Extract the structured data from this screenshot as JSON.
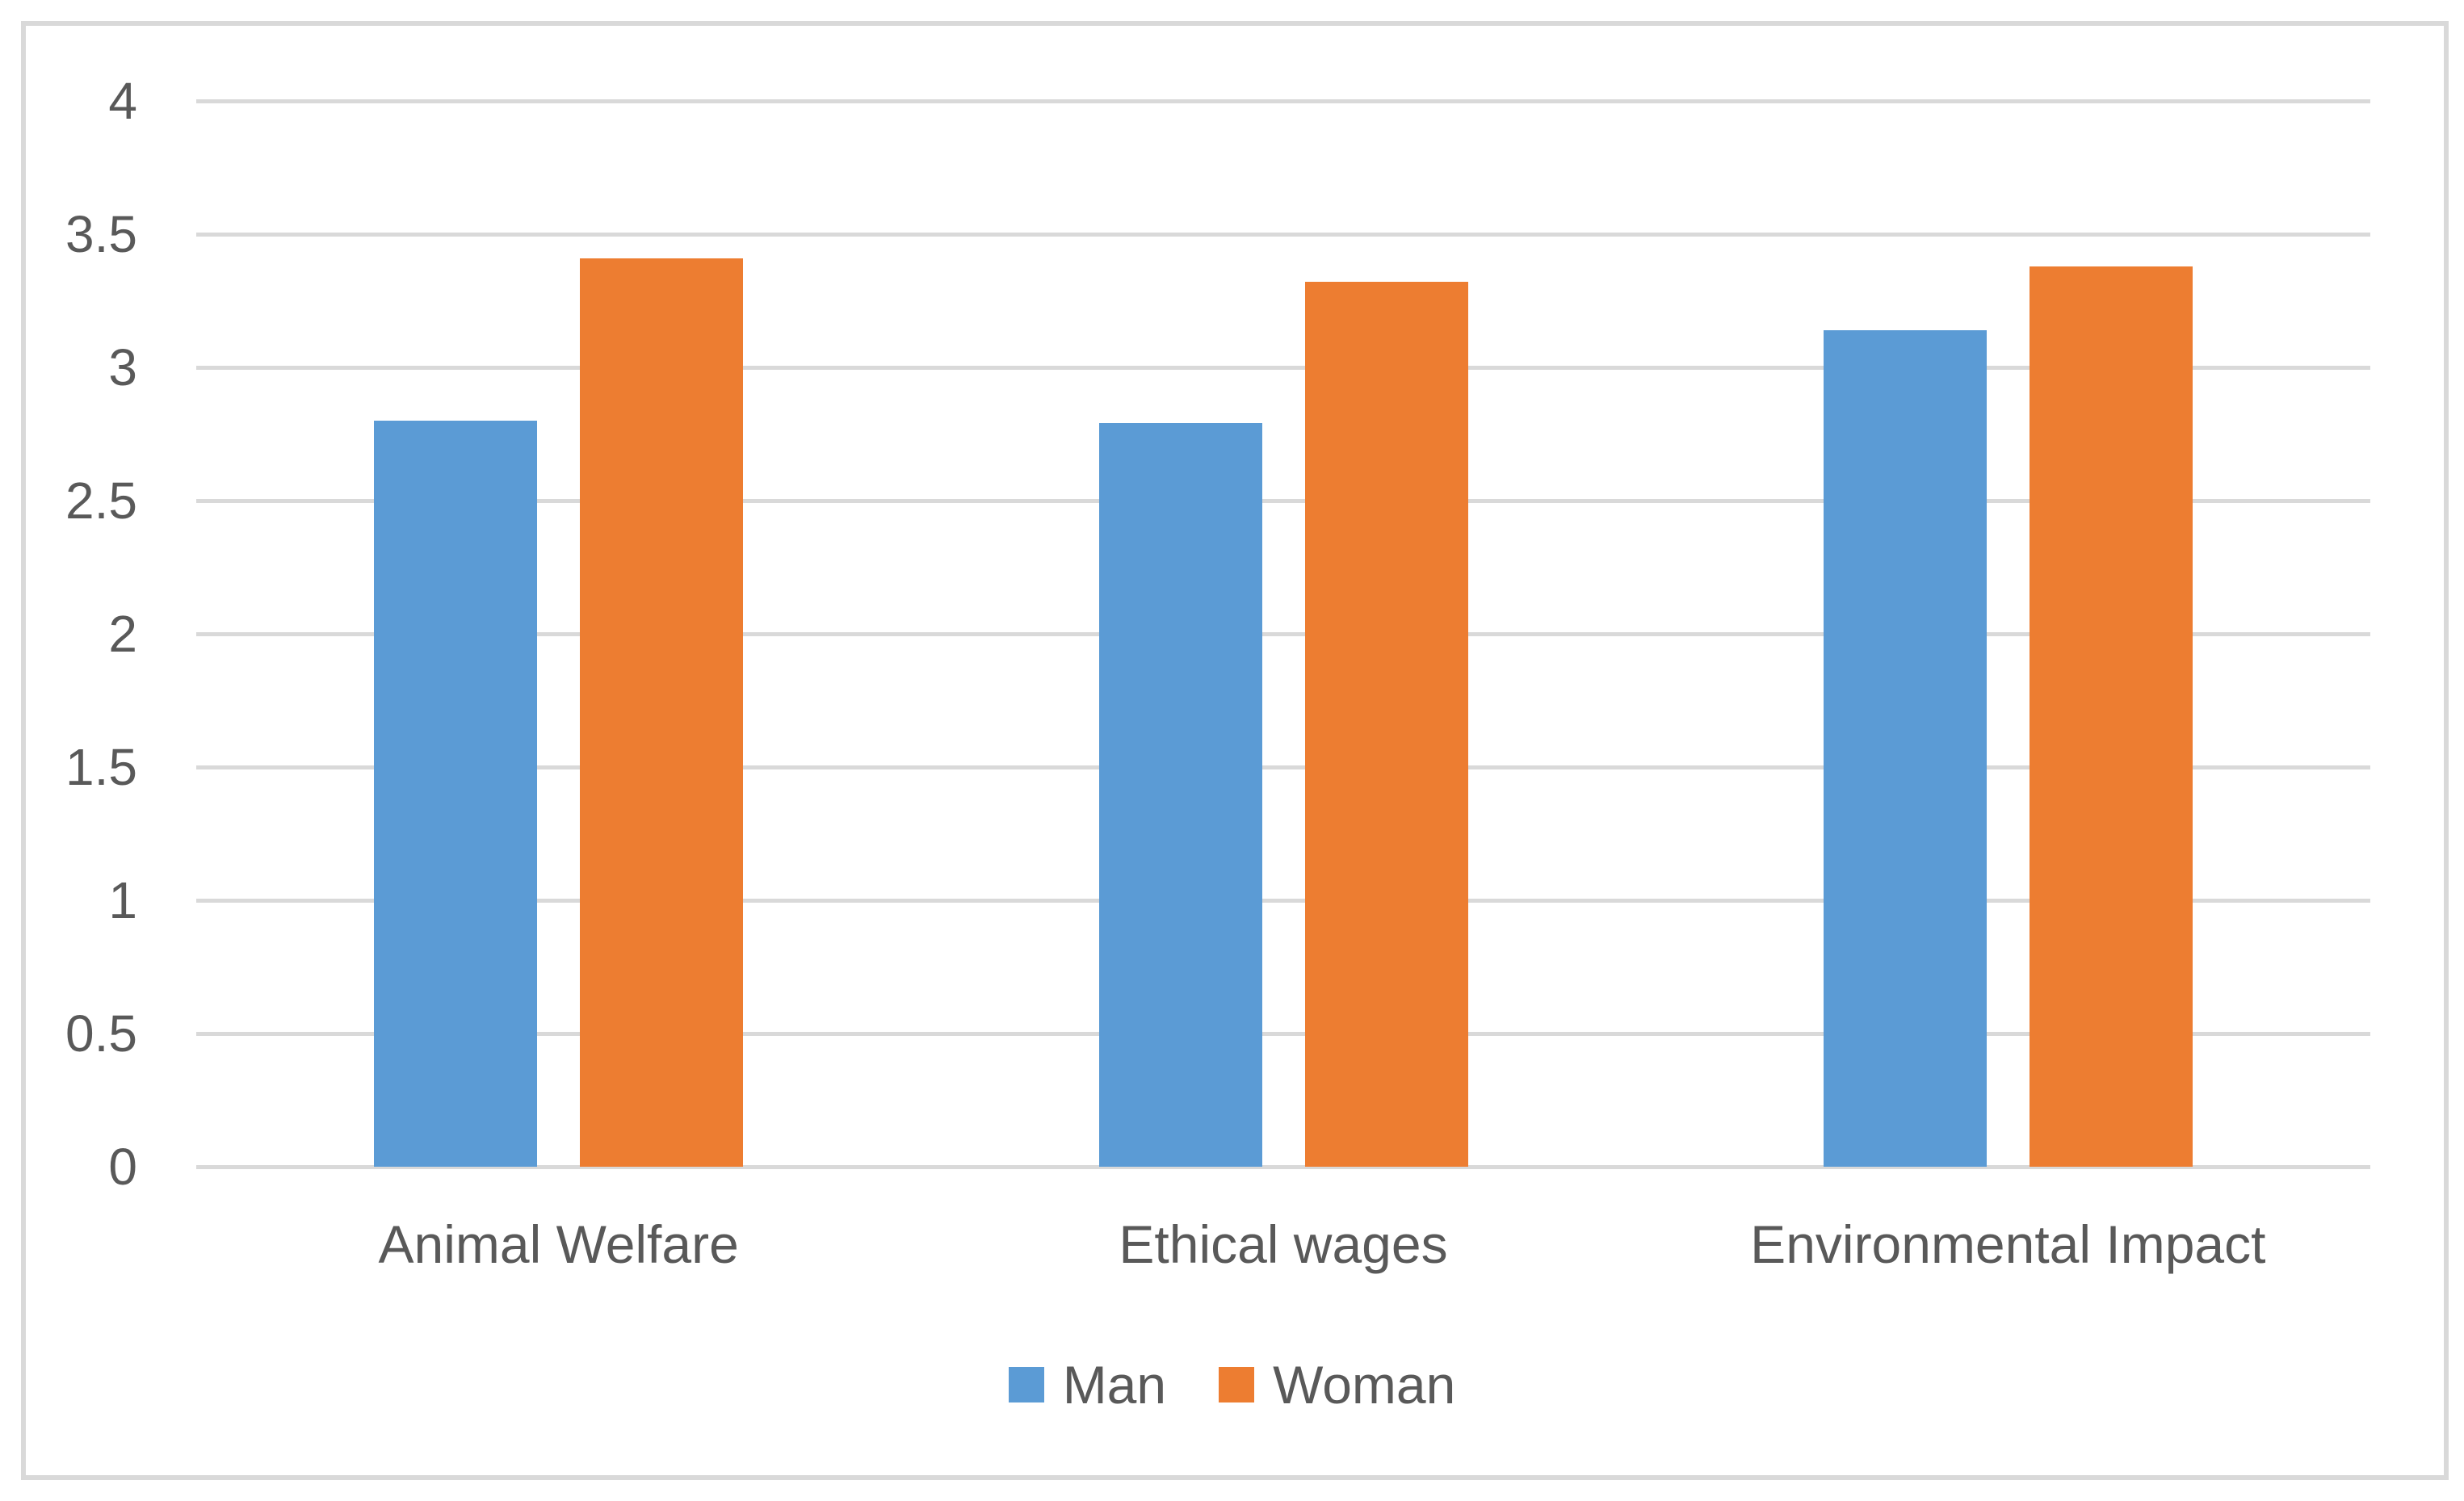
{
  "chart_data": {
    "type": "bar",
    "title": "",
    "xlabel": "",
    "ylabel": "",
    "categories": [
      "Animal Welfare",
      "Ethical wages",
      "Environmental Impact"
    ],
    "series": [
      {
        "name": "Man",
        "values": [
          2.8,
          2.79,
          3.14
        ],
        "color": "#5B9BD5"
      },
      {
        "name": "Woman",
        "values": [
          3.41,
          3.32,
          3.38
        ],
        "color": "#ED7D31"
      }
    ],
    "ylim": [
      0,
      4
    ],
    "yticks": [
      0,
      0.5,
      1,
      1.5,
      2,
      2.5,
      3,
      3.5,
      4
    ],
    "ytick_labels": [
      "0",
      "0.5",
      "1",
      "1.5",
      "2",
      "2.5",
      "3",
      "3.5",
      "4"
    ],
    "grid": "horizontal",
    "legend_position": "bottom",
    "colors": {
      "gridline": "#d9d9d9",
      "frame_border": "#d9d9d9",
      "axis_text": "#595959",
      "background": "#ffffff"
    }
  }
}
